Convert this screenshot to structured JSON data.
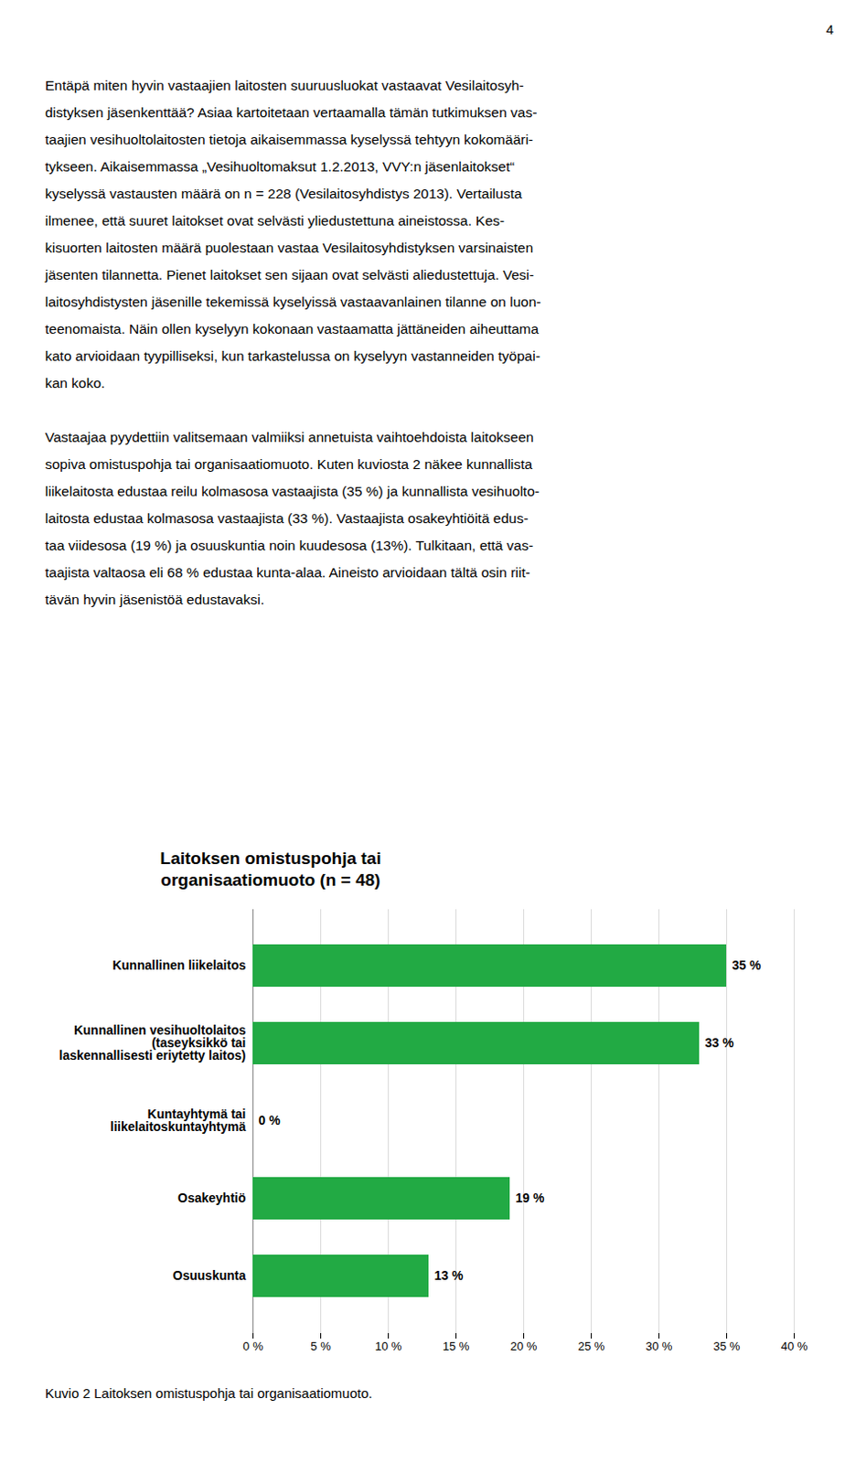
{
  "page_number": "4",
  "body_text": [
    [
      "Entäpä miten hyvin vastaajien laitosten suuruusluokat vastaavat Vesilaitosyh-",
      "distyksen jäsenkenttää? Asiaa kartoitetaan vertaamalla tämän tutkimuksen vas-",
      "taajien vesihuoltolaitosten tietoja aikaisemmassa kyselyssä tehtyyn kokomääri-",
      "tykseen. Aikaisemmassa „Vesihuoltomaksut 1.2.2013, VVY:n jäsenlaitokset“",
      "kyselyssä vastausten määrä on n = 228 (Vesilaitosyhdistys 2013). Vertailusta",
      "ilmenee, että suuret laitokset ovat selvästi yliedustettuna aineistossa. Kes-",
      "kisuorten laitosten määrä puolestaan vastaa Vesilaitosyhdistyksen varsinaisten",
      "jäsenten tilannetta. Pienet laitokset sen sijaan ovat selvästi aliedustettuja. Vesi-",
      "laitosyhdistysten jäsenille tekemissä kyselyissä vastaavanlainen tilanne on luon-",
      "teenomaista. Näin ollen kyselyyn kokonaan vastaamatta jättäneiden aiheuttama",
      "kato arvioidaan tyypilliseksi, kun tarkastelussa on kyselyyn vastanneiden työpai-",
      "kan koko."
    ],
    [
      "Vastaajaa pyydettiin valitsemaan valmiiksi annetuista vaihtoehdoista laitokseen",
      "sopiva omistuspohja tai organisaatiomuoto. Kuten kuviosta 2 näkee kunnallista",
      "liikelaitosta edustaa reilu kolmasosa vastaajista (35 %) ja kunnallista vesihuolto-",
      "laitosta edustaa kolmasosa vastaajista (33 %). Vastaajista osakeyhtiöitä edus-",
      "taa viidesosa (19 %) ja osuuskuntia noin kuudesosa (13%). Tulkitaan, että vas-",
      "taajista valtaosa eli 68 % edustaa kunta-alaa. Aineisto arvioidaan tältä osin riit-",
      "tävän hyvin jäsenistöä edustavaksi."
    ]
  ],
  "chart_data": {
    "type": "bar",
    "orientation": "horizontal",
    "title": "Laitoksen omistuspohja tai\norganisaatiomuoto (n = 48)",
    "categories": [
      "Kunnallinen liikelaitos",
      "Kunnallinen vesihuoltolaitos\n(taseyksikkö tai\nlaskennallisesti eriytetty laitos)",
      "Kuntayhtymä tai\nliikelaitoskuntayhtymä",
      "Osakeyhtiö",
      "Osuuskunta"
    ],
    "values": [
      35,
      33,
      0,
      19,
      13
    ],
    "value_labels": [
      "35 %",
      "33 %",
      "0 %",
      "19 %",
      "13 %"
    ],
    "data_labels": true,
    "color": "#22aa44",
    "xlim": [
      0,
      40
    ],
    "xticks": [
      {
        "value": 0,
        "label": "0 %"
      },
      {
        "value": 5,
        "label": "5 %"
      },
      {
        "value": 10,
        "label": "10 %"
      },
      {
        "value": 15,
        "label": "15 %"
      },
      {
        "value": 20,
        "label": "20 %"
      },
      {
        "value": 25,
        "label": "25 %"
      },
      {
        "value": 30,
        "label": "30 %"
      },
      {
        "value": 35,
        "label": "35 %"
      },
      {
        "value": 40,
        "label": "40 %"
      }
    ],
    "grid": true,
    "caption": "Kuvio 2 Laitoksen omistuspohja tai organisaatiomuoto."
  }
}
